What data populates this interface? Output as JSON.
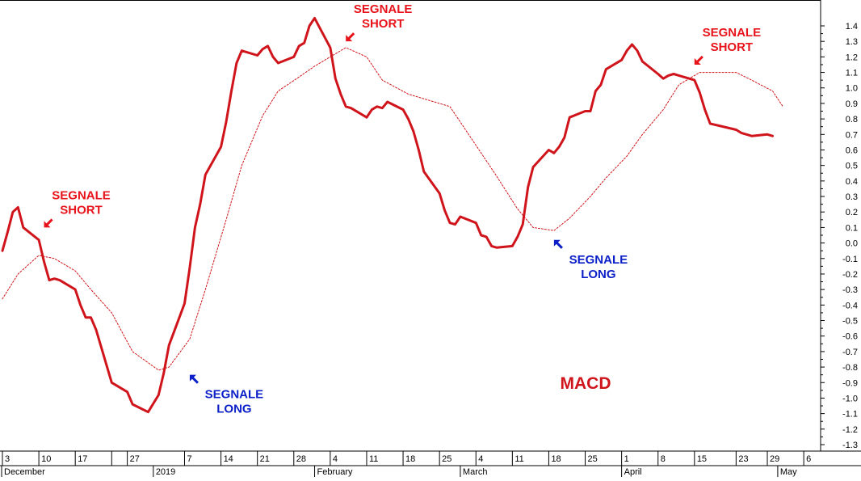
{
  "chart_data": {
    "type": "line",
    "title": "MACD",
    "colors": {
      "macd": "#d0141b",
      "signal": "#d0141b",
      "short": "#e8141b",
      "long": "#0b1fc8"
    },
    "ylim": [
      -1.35,
      1.48
    ],
    "yticks": [
      1.4,
      1.3,
      1.2,
      1.1,
      1.0,
      0.9,
      0.8,
      0.7,
      0.6,
      0.5,
      0.4,
      0.3,
      0.2,
      0.1,
      0.0,
      -0.1,
      -0.2,
      -0.3,
      -0.4,
      -0.5,
      -0.6,
      -0.7,
      -0.8,
      -0.9,
      -1.0,
      -1.1,
      -1.2,
      -1.3
    ],
    "ytick_labels": [
      "1.4",
      "1.3",
      "1.2",
      "1.1",
      "1.0",
      "0.9",
      "0.8",
      "0.7",
      "0.6",
      "0.5",
      "0.4",
      "0.3",
      "0.2",
      "0.1",
      "0.0",
      "-0.1",
      "-0.2",
      "-0.3",
      "-0.4",
      "-0.5",
      "-0.6",
      "-0.7",
      "-0.8",
      "-0.9",
      "-1.0",
      "-1.1",
      "-1.2",
      "-1.3"
    ],
    "x_range": [
      "2018-12-03",
      "2019-05-08"
    ],
    "week_ticks": [
      {
        "date": "2018-12-03",
        "label": "3"
      },
      {
        "date": "2018-12-10",
        "label": "10"
      },
      {
        "date": "2018-12-17",
        "label": "17"
      },
      {
        "date": "2018-12-24",
        "label": ""
      },
      {
        "date": "2018-12-27",
        "label": "27"
      },
      {
        "date": "2019-01-07",
        "label": "7"
      },
      {
        "date": "2019-01-14",
        "label": "14"
      },
      {
        "date": "2019-01-21",
        "label": "21"
      },
      {
        "date": "2019-01-28",
        "label": "28"
      },
      {
        "date": "2019-02-04",
        "label": "4"
      },
      {
        "date": "2019-02-11",
        "label": "11"
      },
      {
        "date": "2019-02-18",
        "label": "18"
      },
      {
        "date": "2019-02-25",
        "label": "25"
      },
      {
        "date": "2019-03-04",
        "label": "4"
      },
      {
        "date": "2019-03-11",
        "label": "11"
      },
      {
        "date": "2019-03-18",
        "label": "18"
      },
      {
        "date": "2019-03-25",
        "label": "25"
      },
      {
        "date": "2019-04-01",
        "label": "1"
      },
      {
        "date": "2019-04-08",
        "label": "8"
      },
      {
        "date": "2019-04-15",
        "label": "15"
      },
      {
        "date": "2019-04-23",
        "label": "23"
      },
      {
        "date": "2019-04-29",
        "label": "29"
      },
      {
        "date": "2019-05-06",
        "label": "6"
      }
    ],
    "month_labels": [
      {
        "date": "2018-12-01",
        "label": "December"
      },
      {
        "date": "2019-01-01",
        "label": "2019"
      },
      {
        "date": "2019-02-01",
        "label": "February"
      },
      {
        "date": "2019-03-01",
        "label": "March"
      },
      {
        "date": "2019-04-01",
        "label": "April"
      },
      {
        "date": "2019-05-01",
        "label": "May"
      }
    ],
    "series": [
      {
        "key": "macd",
        "x": [
          "2018-12-03",
          "2018-12-04",
          "2018-12-05",
          "2018-12-06",
          "2018-12-07",
          "2018-12-10",
          "2018-12-11",
          "2018-12-12",
          "2018-12-13",
          "2018-12-14",
          "2018-12-17",
          "2018-12-18",
          "2018-12-19",
          "2018-12-20",
          "2018-12-21",
          "2018-12-24",
          "2018-12-27",
          "2018-12-28",
          "2018-12-31",
          "2019-01-02",
          "2019-01-03",
          "2019-01-04",
          "2019-01-07",
          "2019-01-08",
          "2019-01-09",
          "2019-01-10",
          "2019-01-11",
          "2019-01-14",
          "2019-01-15",
          "2019-01-16",
          "2019-01-17",
          "2019-01-18",
          "2019-01-21",
          "2019-01-22",
          "2019-01-23",
          "2019-01-24",
          "2019-01-25",
          "2019-01-28",
          "2019-01-29",
          "2019-01-30",
          "2019-01-31",
          "2019-02-01",
          "2019-02-04",
          "2019-02-05",
          "2019-02-06",
          "2019-02-07",
          "2019-02-08",
          "2019-02-11",
          "2019-02-12",
          "2019-02-13",
          "2019-02-14",
          "2019-02-15",
          "2019-02-18",
          "2019-02-19",
          "2019-02-20",
          "2019-02-21",
          "2019-02-22",
          "2019-02-25",
          "2019-02-26",
          "2019-02-27",
          "2019-02-28",
          "2019-03-01",
          "2019-03-04",
          "2019-03-05",
          "2019-03-06",
          "2019-03-07",
          "2019-03-08",
          "2019-03-11",
          "2019-03-12",
          "2019-03-13",
          "2019-03-14",
          "2019-03-15",
          "2019-03-18",
          "2019-03-19",
          "2019-03-20",
          "2019-03-21",
          "2019-03-22",
          "2019-03-25",
          "2019-03-26",
          "2019-03-27",
          "2019-03-28",
          "2019-03-29",
          "2019-04-01",
          "2019-04-02",
          "2019-04-03",
          "2019-04-04",
          "2019-04-05",
          "2019-04-08",
          "2019-04-09",
          "2019-04-10",
          "2019-04-11",
          "2019-04-12",
          "2019-04-15",
          "2019-04-16",
          "2019-04-17",
          "2019-04-18",
          "2019-04-23",
          "2019-04-24",
          "2019-04-26",
          "2019-04-29",
          "2019-04-30"
        ],
        "y": [
          -0.05,
          0.07,
          0.2,
          0.23,
          0.1,
          0.02,
          -0.12,
          -0.24,
          -0.23,
          -0.24,
          -0.3,
          -0.4,
          -0.48,
          -0.48,
          -0.56,
          -0.9,
          -0.96,
          -1.04,
          -1.09,
          -0.98,
          -0.84,
          -0.66,
          -0.39,
          -0.16,
          0.1,
          0.25,
          0.44,
          0.62,
          0.78,
          0.98,
          1.16,
          1.24,
          1.21,
          1.25,
          1.27,
          1.2,
          1.16,
          1.2,
          1.27,
          1.29,
          1.4,
          1.45,
          1.26,
          1.06,
          0.96,
          0.88,
          0.87,
          0.81,
          0.86,
          0.88,
          0.87,
          0.91,
          0.86,
          0.8,
          0.72,
          0.6,
          0.46,
          0.32,
          0.21,
          0.13,
          0.12,
          0.17,
          0.13,
          0.05,
          0.04,
          -0.02,
          -0.03,
          -0.02,
          0.04,
          0.12,
          0.36,
          0.49,
          0.6,
          0.58,
          0.62,
          0.68,
          0.81,
          0.85,
          0.85,
          0.98,
          1.02,
          1.12,
          1.18,
          1.24,
          1.28,
          1.24,
          1.17,
          1.09,
          1.06,
          1.08,
          1.09,
          1.08,
          1.05,
          0.97,
          0.86,
          0.77,
          0.73,
          0.71,
          0.69,
          0.7,
          0.69
        ]
      },
      {
        "key": "signal",
        "x": [
          "2018-12-03",
          "2018-12-06",
          "2018-12-10",
          "2018-12-13",
          "2018-12-17",
          "2018-12-20",
          "2018-12-24",
          "2018-12-28",
          "2019-01-02",
          "2019-01-04",
          "2019-01-08",
          "2019-01-11",
          "2019-01-15",
          "2019-01-18",
          "2019-01-22",
          "2019-01-25",
          "2019-01-29",
          "2019-02-01",
          "2019-02-05",
          "2019-02-07",
          "2019-02-11",
          "2019-02-14",
          "2019-02-19",
          "2019-02-22",
          "2019-02-27",
          "2019-03-01",
          "2019-03-05",
          "2019-03-08",
          "2019-03-12",
          "2019-03-15",
          "2019-03-19",
          "2019-03-22",
          "2019-03-26",
          "2019-03-29",
          "2019-04-02",
          "2019-04-05",
          "2019-04-09",
          "2019-04-12",
          "2019-04-16",
          "2019-04-23",
          "2019-04-26",
          "2019-04-30",
          "2019-05-02"
        ],
        "y": [
          -0.36,
          -0.2,
          -0.08,
          -0.1,
          -0.18,
          -0.3,
          -0.45,
          -0.7,
          -0.82,
          -0.8,
          -0.62,
          -0.3,
          0.15,
          0.5,
          0.82,
          0.98,
          1.07,
          1.14,
          1.22,
          1.26,
          1.2,
          1.05,
          0.96,
          0.93,
          0.88,
          0.78,
          0.58,
          0.43,
          0.22,
          0.1,
          0.08,
          0.16,
          0.3,
          0.42,
          0.56,
          0.7,
          0.86,
          1.02,
          1.1,
          1.1,
          1.05,
          0.98,
          0.88
        ]
      }
    ],
    "annotations": [
      {
        "text": "SEGNALE",
        "text2": "SHORT",
        "kind": "short",
        "date": "2018-12-11",
        "value": 0.1,
        "arrow": "down-left"
      },
      {
        "text": "SEGNALE",
        "text2": "LONG",
        "kind": "long",
        "date": "2019-01-08",
        "value": -0.85,
        "arrow": "up-left"
      },
      {
        "text": "SEGNALE",
        "text2": "SHORT",
        "kind": "short",
        "date": "2019-02-07",
        "value": 1.3,
        "arrow": "down-left"
      },
      {
        "text": "SEGNALE",
        "text2": "LONG",
        "kind": "long",
        "date": "2019-03-19",
        "value": 0.02,
        "arrow": "up-left"
      },
      {
        "text": "SEGNALE",
        "text2": "SHORT",
        "kind": "short",
        "date": "2019-04-15",
        "value": 1.15,
        "arrow": "down-left"
      }
    ]
  }
}
